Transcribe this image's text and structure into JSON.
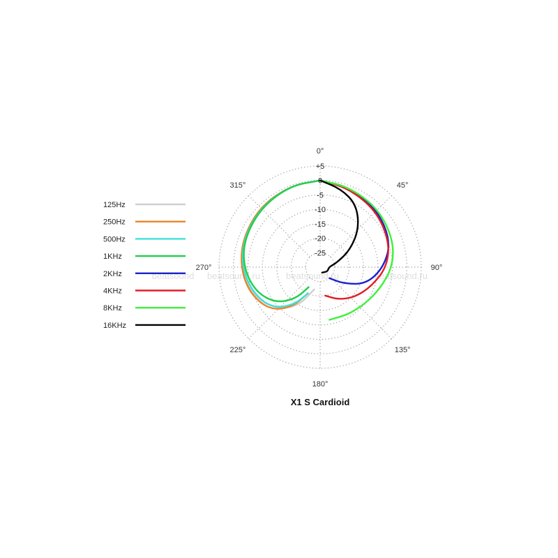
{
  "chart_data": {
    "type": "polar",
    "title": "X1 S  Cardioid",
    "angle_labels": [
      "0°",
      "45°",
      "90°",
      "135°",
      "180°",
      "225°",
      "270°",
      "315°"
    ],
    "radial_ticks": [
      "+5",
      "0",
      "-5",
      "-10",
      "-15",
      "-20",
      "-25"
    ],
    "r_range": [
      -30,
      5
    ],
    "grid": true,
    "legend_position": "left",
    "watermarks": [
      "beatsound.ru",
      "beatsound.ru",
      "beatsound.ru",
      "beatsound"
    ],
    "series": [
      {
        "name": "125Hz",
        "color": "#cfcfcf",
        "side": "left",
        "points": [
          [
            0,
            0
          ],
          [
            20,
            0
          ],
          [
            45,
            -0.5
          ],
          [
            70,
            -1.5
          ],
          [
            90,
            -2.5
          ],
          [
            110,
            -4.5
          ],
          [
            130,
            -8
          ],
          [
            150,
            -14
          ],
          [
            165,
            -22
          ]
        ]
      },
      {
        "name": "250Hz",
        "color": "#e8832a",
        "side": "left",
        "points": [
          [
            0,
            0
          ],
          [
            20,
            0
          ],
          [
            45,
            -0.5
          ],
          [
            70,
            -1.5
          ],
          [
            90,
            -2.5
          ],
          [
            110,
            -4
          ],
          [
            130,
            -7
          ],
          [
            145,
            -13
          ],
          [
            155,
            -20
          ]
        ]
      },
      {
        "name": "500Hz",
        "color": "#3fe0dc",
        "side": "left",
        "points": [
          [
            0,
            0
          ],
          [
            20,
            0
          ],
          [
            45,
            -0.8
          ],
          [
            70,
            -1.8
          ],
          [
            90,
            -3
          ],
          [
            110,
            -5
          ],
          [
            130,
            -8
          ],
          [
            145,
            -14
          ],
          [
            155,
            -20
          ]
        ]
      },
      {
        "name": "1KHz",
        "color": "#1fcf4a",
        "side": "left",
        "points": [
          [
            0,
            0
          ],
          [
            20,
            0
          ],
          [
            45,
            -1
          ],
          [
            70,
            -2
          ],
          [
            90,
            -3.5
          ],
          [
            110,
            -6
          ],
          [
            128,
            -10
          ],
          [
            142,
            -16
          ],
          [
            150,
            -22
          ]
        ]
      },
      {
        "name": "2KHz",
        "color": "#1a22c8",
        "side": "right",
        "points": [
          [
            0,
            0
          ],
          [
            20,
            -0.5
          ],
          [
            45,
            -2
          ],
          [
            70,
            -4
          ],
          [
            90,
            -8
          ],
          [
            110,
            -13
          ],
          [
            125,
            -20
          ],
          [
            140,
            -25
          ]
        ]
      },
      {
        "name": "4KHz",
        "color": "#e01f26",
        "side": "right",
        "points": [
          [
            0,
            0
          ],
          [
            20,
            -1
          ],
          [
            45,
            -2.5
          ],
          [
            70,
            -4.5
          ],
          [
            90,
            -7
          ],
          [
            110,
            -11
          ],
          [
            130,
            -14
          ],
          [
            150,
            -17
          ],
          [
            170,
            -20
          ]
        ]
      },
      {
        "name": "8KHz",
        "color": "#3ff03a",
        "side": "right",
        "points": [
          [
            0,
            0
          ],
          [
            20,
            -0.5
          ],
          [
            45,
            -1.5
          ],
          [
            70,
            -3
          ],
          [
            90,
            -5
          ],
          [
            110,
            -8
          ],
          [
            130,
            -10
          ],
          [
            150,
            -11
          ],
          [
            170,
            -11.5
          ]
        ]
      },
      {
        "name": "16KHz",
        "color": "#000000",
        "side": "right",
        "points": [
          [
            0,
            0
          ],
          [
            15,
            -2
          ],
          [
            30,
            -5
          ],
          [
            45,
            -11
          ],
          [
            60,
            -18
          ],
          [
            75,
            -24
          ],
          [
            90,
            -27
          ],
          [
            120,
            -27
          ],
          [
            160,
            -28
          ]
        ]
      }
    ]
  }
}
